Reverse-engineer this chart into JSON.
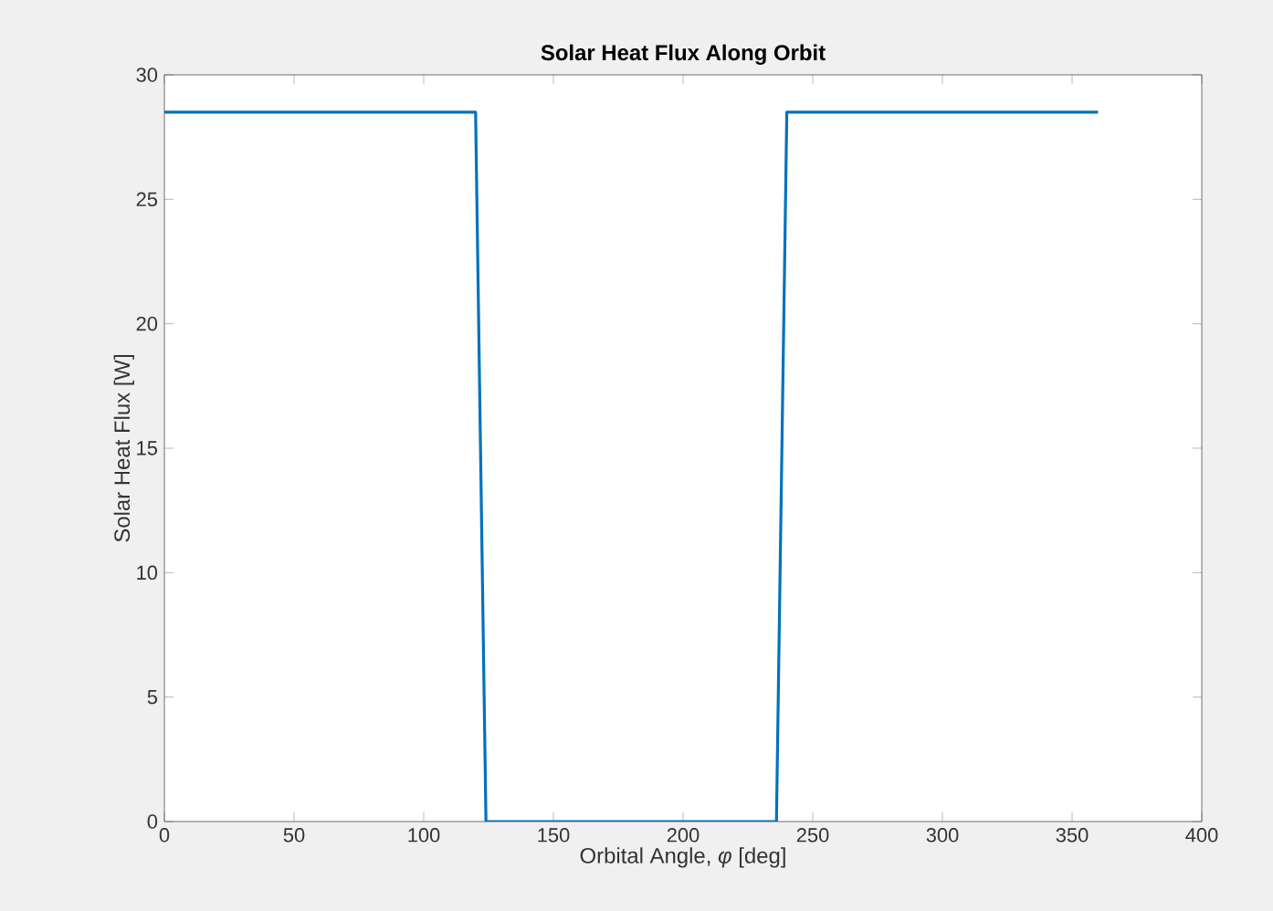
{
  "chart_data": {
    "type": "line",
    "title": "Solar Heat Flux Along Orbit",
    "xlabel": "Orbital Angle, *φ* [deg]",
    "ylabel": "Solar Heat Flux [W]",
    "x": [
      0,
      120,
      124,
      236,
      240,
      360
    ],
    "values": [
      28.5,
      28.5,
      0,
      0,
      28.5,
      28.5
    ],
    "color": "#0072bd",
    "xlim": [
      0,
      400
    ],
    "ylim": [
      0,
      30
    ],
    "xticks": [
      0,
      50,
      100,
      150,
      200,
      250,
      300,
      350,
      400
    ],
    "yticks": [
      0,
      5,
      10,
      15,
      20,
      25,
      30
    ]
  }
}
